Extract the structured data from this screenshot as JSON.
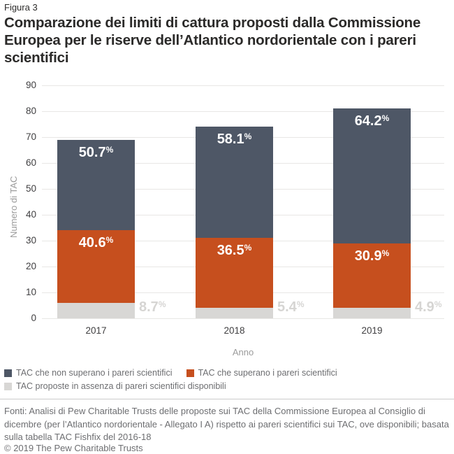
{
  "figure_label": "Figura 3",
  "title": "Comparazione dei limiti di cattura proposti dalla Commissione Europea per le riserve dell’Atlantico nordorientale con i pareri scientifici",
  "chart_data": {
    "type": "bar",
    "stacked": true,
    "title": "Comparazione dei limiti di cattura proposti dalla Commissione Europea per le riserve dell’Atlantico nordorientale con i pareri scientifici",
    "categories": [
      "2017",
      "2018",
      "2019"
    ],
    "series": [
      {
        "name": "TAC che non superano i pareri scientifici",
        "color": "#4e5766",
        "values": [
          35,
          43,
          52
        ],
        "percent_labels": [
          "50.7%",
          "58.1%",
          "64.2%"
        ],
        "label_style": "inside-white"
      },
      {
        "name": "TAC che superano i pareri scientifici",
        "color": "#c64f1e",
        "values": [
          28,
          27,
          25
        ],
        "percent_labels": [
          "40.6%",
          "36.5%",
          "30.9%"
        ],
        "label_style": "inside-white"
      },
      {
        "name": "TAC proposte in assenza di pareri scientifici disponibili",
        "color": "#d8d7d5",
        "values": [
          6,
          4,
          4
        ],
        "percent_labels": [
          "8.7%",
          "5.4%",
          "4.9%"
        ],
        "label_style": "outside-gray"
      }
    ],
    "totals": [
      69,
      74,
      81
    ],
    "xlabel": "Anno",
    "ylabel": "Numero di TAC",
    "ylim": [
      0,
      90
    ],
    "ytick_step": 10,
    "grid": true,
    "legend_position": "bottom"
  },
  "footer": {
    "source": "Fonti: Analisi di Pew Charitable Trusts delle proposte sui TAC della Commissione Europea al Consiglio di dicembre (per l’Atlantico nordorientale - Allegato I A) rispetto ai pareri scientifici sui TAC, ove disponibili; basata sulla tabella TAC Fishfix del 2016-18",
    "copyright": "© 2019 The Pew Charitable Trusts"
  }
}
